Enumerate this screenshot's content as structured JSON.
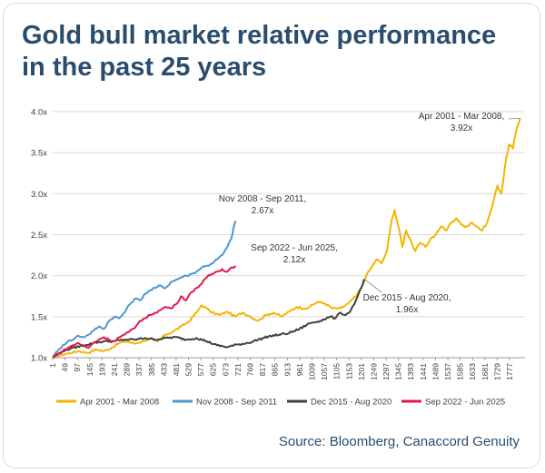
{
  "title": {
    "line1": "Gold bull market relative performance",
    "line2": "in the past 25 years"
  },
  "source": "Source: Bloomberg, Canaccord Genuity",
  "chart_data": {
    "type": "line",
    "title": "Gold bull market relative performance in the past 25 years",
    "xlabel": "",
    "ylabel": "",
    "xlim": [
      1,
      1837
    ],
    "ylim": [
      1.0,
      4.0
    ],
    "x_ticks": [
      "1",
      "49",
      "97",
      "145",
      "193",
      "241",
      "289",
      "337",
      "385",
      "433",
      "481",
      "529",
      "577",
      "625",
      "673",
      "721",
      "769",
      "817",
      "865",
      "913",
      "961",
      "1009",
      "1057",
      "1105",
      "1153",
      "1201",
      "1249",
      "1297",
      "1345",
      "1393",
      "1441",
      "1489",
      "1537",
      "1585",
      "1633",
      "1681",
      "1729",
      "1777"
    ],
    "y_ticks": [
      "1.0x",
      "1.5x",
      "2.0x",
      "2.5x",
      "3.0x",
      "3.5x",
      "4.0x"
    ],
    "grid": "horizontal",
    "legend_position": "bottom",
    "series": [
      {
        "name": "Apr 2001 - Mar 2008",
        "color": "#f4b400",
        "points": [
          [
            1,
            1.0
          ],
          [
            30,
            1.03
          ],
          [
            60,
            1.05
          ],
          [
            100,
            1.08
          ],
          [
            140,
            1.06
          ],
          [
            170,
            1.1
          ],
          [
            200,
            1.08
          ],
          [
            230,
            1.12
          ],
          [
            260,
            1.18
          ],
          [
            290,
            1.2
          ],
          [
            320,
            1.17
          ],
          [
            350,
            1.2
          ],
          [
            380,
            1.23
          ],
          [
            410,
            1.2
          ],
          [
            440,
            1.28
          ],
          [
            470,
            1.32
          ],
          [
            500,
            1.38
          ],
          [
            530,
            1.44
          ],
          [
            560,
            1.55
          ],
          [
            580,
            1.64
          ],
          [
            600,
            1.6
          ],
          [
            620,
            1.55
          ],
          [
            650,
            1.52
          ],
          [
            680,
            1.56
          ],
          [
            710,
            1.5
          ],
          [
            740,
            1.55
          ],
          [
            770,
            1.5
          ],
          [
            800,
            1.45
          ],
          [
            830,
            1.52
          ],
          [
            860,
            1.55
          ],
          [
            890,
            1.5
          ],
          [
            920,
            1.56
          ],
          [
            950,
            1.62
          ],
          [
            980,
            1.6
          ],
          [
            1000,
            1.62
          ],
          [
            1030,
            1.68
          ],
          [
            1060,
            1.66
          ],
          [
            1090,
            1.6
          ],
          [
            1120,
            1.6
          ],
          [
            1150,
            1.66
          ],
          [
            1180,
            1.75
          ],
          [
            1200,
            1.85
          ],
          [
            1220,
            2.0
          ],
          [
            1240,
            2.1
          ],
          [
            1260,
            2.2
          ],
          [
            1280,
            2.15
          ],
          [
            1300,
            2.3
          ],
          [
            1320,
            2.7
          ],
          [
            1330,
            2.8
          ],
          [
            1345,
            2.6
          ],
          [
            1360,
            2.35
          ],
          [
            1375,
            2.55
          ],
          [
            1390,
            2.45
          ],
          [
            1410,
            2.3
          ],
          [
            1430,
            2.4
          ],
          [
            1450,
            2.35
          ],
          [
            1470,
            2.45
          ],
          [
            1490,
            2.5
          ],
          [
            1510,
            2.6
          ],
          [
            1530,
            2.55
          ],
          [
            1550,
            2.65
          ],
          [
            1570,
            2.7
          ],
          [
            1590,
            2.62
          ],
          [
            1610,
            2.6
          ],
          [
            1630,
            2.65
          ],
          [
            1650,
            2.6
          ],
          [
            1670,
            2.55
          ],
          [
            1690,
            2.65
          ],
          [
            1710,
            2.85
          ],
          [
            1730,
            3.1
          ],
          [
            1745,
            3.0
          ],
          [
            1760,
            3.35
          ],
          [
            1775,
            3.6
          ],
          [
            1790,
            3.55
          ],
          [
            1805,
            3.8
          ],
          [
            1818,
            3.92
          ]
        ]
      },
      {
        "name": "Nov 2008 - Sep 2011",
        "color": "#4f97cf",
        "points": [
          [
            1,
            1.02
          ],
          [
            20,
            1.08
          ],
          [
            40,
            1.15
          ],
          [
            60,
            1.2
          ],
          [
            80,
            1.22
          ],
          [
            100,
            1.27
          ],
          [
            120,
            1.25
          ],
          [
            140,
            1.28
          ],
          [
            160,
            1.33
          ],
          [
            180,
            1.38
          ],
          [
            200,
            1.35
          ],
          [
            220,
            1.45
          ],
          [
            240,
            1.5
          ],
          [
            260,
            1.48
          ],
          [
            280,
            1.55
          ],
          [
            300,
            1.65
          ],
          [
            320,
            1.72
          ],
          [
            340,
            1.7
          ],
          [
            360,
            1.78
          ],
          [
            380,
            1.82
          ],
          [
            400,
            1.85
          ],
          [
            420,
            1.88
          ],
          [
            440,
            1.85
          ],
          [
            460,
            1.92
          ],
          [
            480,
            1.95
          ],
          [
            500,
            1.98
          ],
          [
            520,
            2.0
          ],
          [
            540,
            2.02
          ],
          [
            560,
            2.05
          ],
          [
            580,
            2.1
          ],
          [
            600,
            2.12
          ],
          [
            620,
            2.15
          ],
          [
            640,
            2.2
          ],
          [
            660,
            2.25
          ],
          [
            680,
            2.35
          ],
          [
            695,
            2.45
          ],
          [
            705,
            2.6
          ],
          [
            712,
            2.67
          ]
        ]
      },
      {
        "name": "Dec 2015 - Aug 2020",
        "color": "#404040",
        "points": [
          [
            1,
            1.0
          ],
          [
            40,
            1.08
          ],
          [
            80,
            1.12
          ],
          [
            120,
            1.15
          ],
          [
            160,
            1.18
          ],
          [
            200,
            1.2
          ],
          [
            240,
            1.2
          ],
          [
            280,
            1.22
          ],
          [
            320,
            1.22
          ],
          [
            360,
            1.24
          ],
          [
            400,
            1.22
          ],
          [
            440,
            1.24
          ],
          [
            480,
            1.25
          ],
          [
            520,
            1.22
          ],
          [
            560,
            1.24
          ],
          [
            600,
            1.2
          ],
          [
            640,
            1.15
          ],
          [
            680,
            1.13
          ],
          [
            720,
            1.16
          ],
          [
            760,
            1.18
          ],
          [
            800,
            1.22
          ],
          [
            840,
            1.26
          ],
          [
            880,
            1.28
          ],
          [
            920,
            1.3
          ],
          [
            960,
            1.35
          ],
          [
            1000,
            1.42
          ],
          [
            1040,
            1.45
          ],
          [
            1080,
            1.5
          ],
          [
            1100,
            1.48
          ],
          [
            1120,
            1.55
          ],
          [
            1140,
            1.52
          ],
          [
            1160,
            1.58
          ],
          [
            1180,
            1.7
          ],
          [
            1200,
            1.85
          ],
          [
            1212,
            1.96
          ]
        ]
      },
      {
        "name": "Sep 2022 - Jun 2025",
        "color": "#e0184d",
        "points": [
          [
            1,
            1.0
          ],
          [
            20,
            1.05
          ],
          [
            40,
            1.08
          ],
          [
            60,
            1.12
          ],
          [
            80,
            1.15
          ],
          [
            100,
            1.18
          ],
          [
            120,
            1.14
          ],
          [
            140,
            1.12
          ],
          [
            160,
            1.18
          ],
          [
            180,
            1.22
          ],
          [
            200,
            1.25
          ],
          [
            220,
            1.22
          ],
          [
            240,
            1.2
          ],
          [
            260,
            1.25
          ],
          [
            280,
            1.28
          ],
          [
            300,
            1.32
          ],
          [
            320,
            1.36
          ],
          [
            340,
            1.45
          ],
          [
            360,
            1.48
          ],
          [
            380,
            1.52
          ],
          [
            400,
            1.55
          ],
          [
            420,
            1.58
          ],
          [
            440,
            1.62
          ],
          [
            460,
            1.6
          ],
          [
            480,
            1.65
          ],
          [
            500,
            1.75
          ],
          [
            520,
            1.7
          ],
          [
            540,
            1.8
          ],
          [
            560,
            1.85
          ],
          [
            580,
            1.9
          ],
          [
            600,
            1.98
          ],
          [
            620,
            2.02
          ],
          [
            640,
            2.05
          ],
          [
            660,
            2.08
          ],
          [
            680,
            2.05
          ],
          [
            695,
            2.1
          ],
          [
            712,
            2.12
          ]
        ]
      }
    ],
    "annotations": [
      {
        "line1": "Apr 2001 - Mar 2008,",
        "line2": "3.92x",
        "series": 0
      },
      {
        "line1": "Nov 2008 - Sep 2011,",
        "line2": "2.67x",
        "series": 1
      },
      {
        "line1": "Sep 2022 - Jun 2025,",
        "line2": "2.12x",
        "series": 3
      },
      {
        "line1": "Dec 2015 - Aug 2020,",
        "line2": "1.96x",
        "series": 2
      }
    ]
  }
}
